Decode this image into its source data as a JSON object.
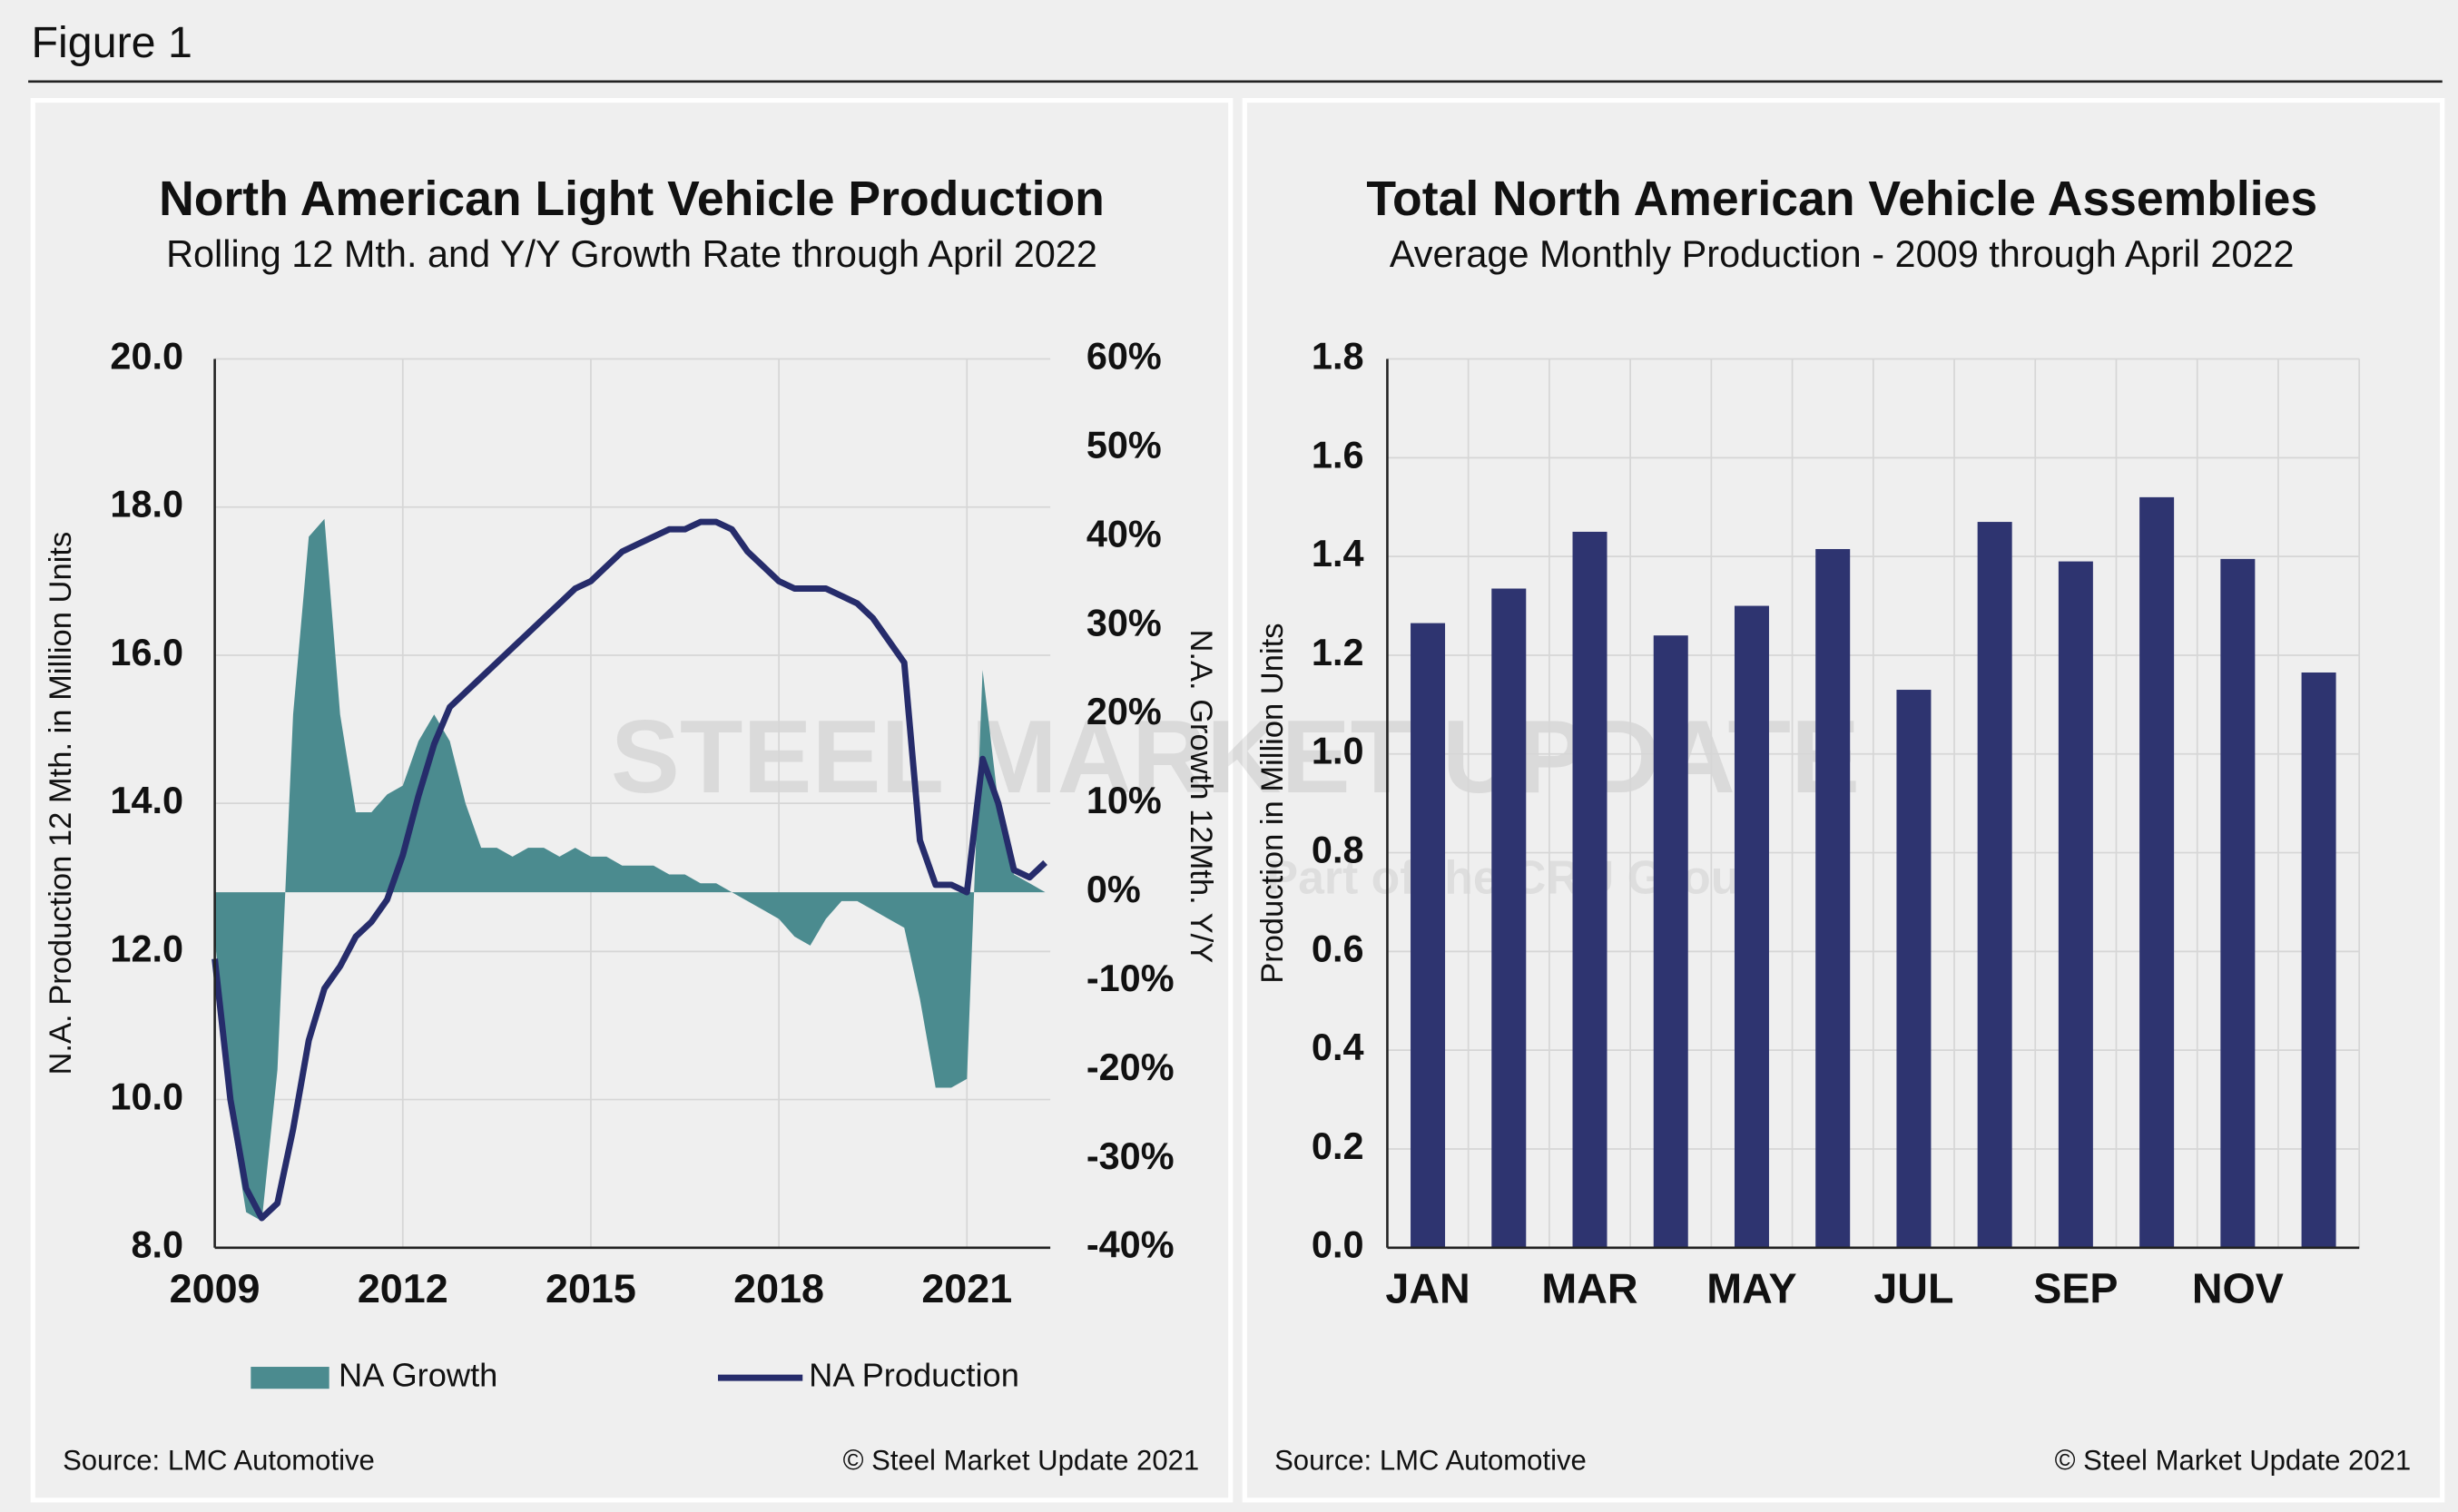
{
  "header": {
    "title": "Figure 1"
  },
  "watermark": {
    "text": "STEEL MARKET UPDATE",
    "tagline": "Part of the CRU Group"
  },
  "chart_data": [
    {
      "type": "combo",
      "title": "North American Light Vehicle Production",
      "subtitle": "Rolling 12 Mth. and Y/Y Growth Rate through April 2022",
      "y_label": "N.A. Production 12 Mth. in Million Units",
      "y2_label": "N.A. Growth 12Mth. Y/Y",
      "x": [
        2009.0,
        2009.25,
        2009.5,
        2009.75,
        2010.0,
        2010.25,
        2010.5,
        2010.75,
        2011.0,
        2011.25,
        2011.5,
        2011.75,
        2012.0,
        2012.25,
        2012.5,
        2012.75,
        2013.0,
        2013.25,
        2013.5,
        2013.75,
        2014.0,
        2014.25,
        2014.5,
        2014.75,
        2015.0,
        2015.25,
        2015.5,
        2015.75,
        2016.0,
        2016.25,
        2016.5,
        2016.75,
        2017.0,
        2017.25,
        2017.5,
        2017.75,
        2018.0,
        2018.25,
        2018.5,
        2018.75,
        2019.0,
        2019.25,
        2019.5,
        2019.75,
        2020.0,
        2020.25,
        2020.5,
        2020.75,
        2021.0,
        2021.25,
        2021.5,
        2021.75,
        2022.0,
        2022.25
      ],
      "series": [
        {
          "name": "NA Growth",
          "type": "area",
          "axis": "y2",
          "color": "#4b8b8f",
          "values": [
            -5,
            -25,
            -36,
            -37,
            -20,
            20,
            40,
            42,
            20,
            9,
            9,
            11,
            12,
            17,
            20,
            17,
            10,
            5,
            5,
            4,
            5,
            5,
            4,
            5,
            4,
            4,
            3,
            3,
            3,
            2,
            2,
            1,
            1,
            0,
            -1,
            -2,
            -3,
            -5,
            -6,
            -3,
            -1,
            -1,
            -2,
            -3,
            -4,
            -12,
            -22,
            -22,
            -21,
            25,
            10,
            2,
            1,
            0
          ]
        },
        {
          "name": "NA Production",
          "type": "line",
          "color": "#262c6b",
          "values": [
            11.9,
            10.0,
            8.8,
            8.4,
            8.6,
            9.6,
            10.8,
            11.5,
            11.8,
            12.2,
            12.4,
            12.7,
            13.3,
            14.1,
            14.8,
            15.3,
            15.5,
            15.7,
            15.9,
            16.1,
            16.3,
            16.5,
            16.7,
            16.9,
            17.0,
            17.2,
            17.4,
            17.5,
            17.6,
            17.7,
            17.7,
            17.8,
            17.8,
            17.7,
            17.4,
            17.2,
            17.0,
            16.9,
            16.9,
            16.9,
            16.8,
            16.7,
            16.5,
            16.2,
            15.9,
            13.5,
            12.9,
            12.9,
            12.8,
            14.6,
            14.0,
            13.1,
            13.0,
            13.2
          ]
        }
      ],
      "xlim": [
        2009,
        2022.33
      ],
      "xticks": [
        2009,
        2012,
        2015,
        2018,
        2021
      ],
      "ylim": [
        8,
        20
      ],
      "yticks": [
        {
          "value": 8,
          "label": "8.0"
        },
        {
          "value": 10,
          "label": "10.0"
        },
        {
          "value": 12,
          "label": "12.0"
        },
        {
          "value": 14,
          "label": "14.0"
        },
        {
          "value": 16,
          "label": "16.0"
        },
        {
          "value": 18,
          "label": "18.0"
        },
        {
          "value": 20,
          "label": "20.0"
        }
      ],
      "y2lim": [
        -40,
        60
      ],
      "y2ticks": [
        {
          "value": -40,
          "label": "-40%"
        },
        {
          "value": -30,
          "label": "-30%"
        },
        {
          "value": -20,
          "label": "-20%"
        },
        {
          "value": -10,
          "label": "-10%"
        },
        {
          "value": 0,
          "label": "0%"
        },
        {
          "value": 10,
          "label": "10%"
        },
        {
          "value": 20,
          "label": "20%"
        },
        {
          "value": 30,
          "label": "30%"
        },
        {
          "value": 40,
          "label": "40%"
        },
        {
          "value": 50,
          "label": "50%"
        },
        {
          "value": 60,
          "label": "60%"
        }
      ],
      "grid": true,
      "legend": "bottom",
      "source": "Source: LMC Automotive",
      "copyright": "© Steel Market Update 2021"
    },
    {
      "type": "bar",
      "title": "Total North American Vehicle Assemblies",
      "subtitle": "Average Monthly Production - 2009 through April 2022",
      "y_label": "Production in Million Units",
      "categories": [
        "JAN",
        null,
        "MAR",
        null,
        "MAY",
        null,
        "JUL",
        null,
        "SEP",
        null,
        "NOV",
        null
      ],
      "values": [
        1.265,
        1.335,
        1.45,
        1.24,
        1.3,
        1.415,
        1.13,
        1.47,
        1.39,
        1.52,
        1.395,
        1.165
      ],
      "color": "#2e3470",
      "ylim": [
        0,
        1.8
      ],
      "yticks": [
        {
          "value": 0,
          "label": "0.0"
        },
        {
          "value": 0.2,
          "label": "0.2"
        },
        {
          "value": 0.4,
          "label": "0.4"
        },
        {
          "value": 0.6,
          "label": "0.6"
        },
        {
          "value": 0.8,
          "label": "0.8"
        },
        {
          "value": 1,
          "label": "1.0"
        },
        {
          "value": 1.2,
          "label": "1.2"
        },
        {
          "value": 1.4,
          "label": "1.4"
        },
        {
          "value": 1.6,
          "label": "1.6"
        },
        {
          "value": 1.8,
          "label": "1.8"
        }
      ],
      "grid": true,
      "source": "Source: LMC Automotive",
      "copyright": "© Steel Market Update 2021"
    }
  ]
}
